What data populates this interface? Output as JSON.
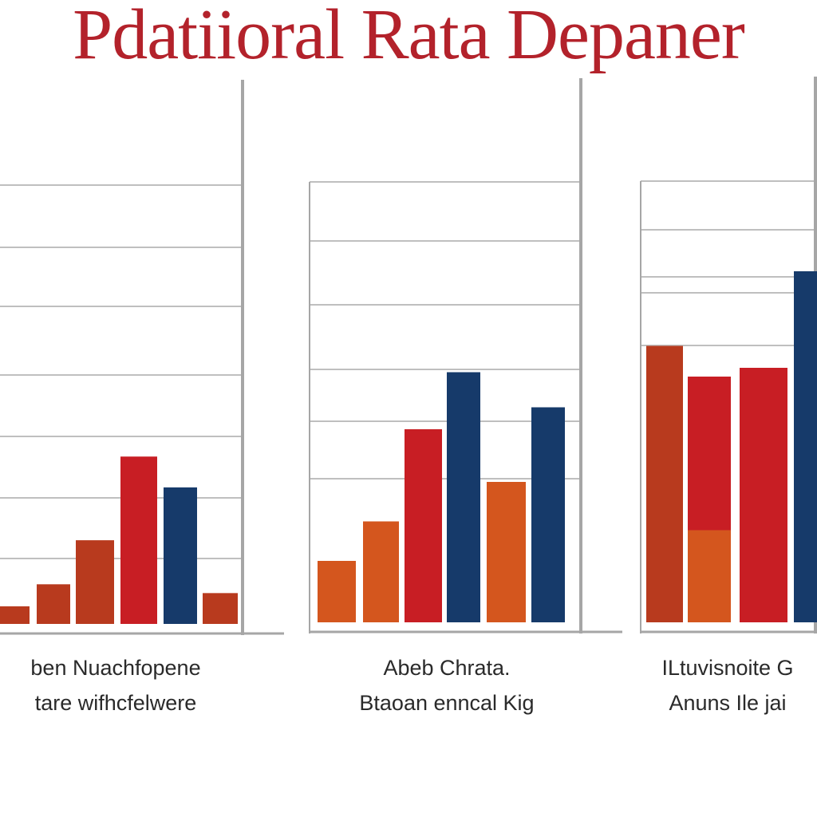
{
  "title": "Pdatiioral Rata Depaner",
  "colors": {
    "grid": "#bfbfbf",
    "axis": "#a6a6a6",
    "orange": "#d4561e",
    "red": "#c81e24",
    "navy": "#163a6a",
    "rust": "#b83a1e"
  },
  "chart_data": [
    {
      "type": "bar",
      "caption_lines": [
        "ben Nuachfopene",
        "tare wifhcfelwere"
      ],
      "ylim": [
        0,
        100
      ],
      "values": [
        4,
        9,
        19,
        38,
        31,
        7
      ]
    },
    {
      "type": "bar",
      "caption_lines": [
        "Abeb Chrata.",
        "Btaoan enncal Kig"
      ],
      "ylim": [
        0,
        100
      ],
      "values": [
        14,
        23,
        44,
        57,
        32,
        49
      ]
    },
    {
      "type": "bar",
      "caption_lines": [
        "ILtuvisnoite G",
        "Anuns Ile jai"
      ],
      "ylim": [
        0,
        100
      ],
      "values": [
        63,
        21,
        56,
        58,
        80
      ]
    }
  ]
}
